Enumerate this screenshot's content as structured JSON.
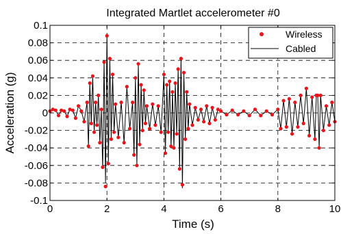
{
  "chart_data": {
    "type": "line",
    "title": "Integrated Martlet accelerometer #0",
    "xlabel": "Time (s)",
    "ylabel": "Acceleration (g)",
    "xlim": [
      0,
      10
    ],
    "ylim": [
      -0.1,
      0.1
    ],
    "x_ticks": [
      0,
      2,
      4,
      6,
      8,
      10
    ],
    "x_tick_labels": [
      "0",
      "2",
      "4",
      "6",
      "8",
      "10"
    ],
    "y_ticks": [
      -0.1,
      -0.08,
      -0.06,
      -0.04,
      -0.02,
      0,
      0.02,
      0.04,
      0.06,
      0.08,
      0.1
    ],
    "y_tick_labels": [
      "-0.1",
      "-0.08",
      "-0.06",
      "-0.04",
      "-0.02",
      "0",
      "0.02",
      "0.04",
      "0.06",
      "0.08",
      "0.1"
    ],
    "grid": true,
    "grid_style": "dashed",
    "legend_position": "top-right",
    "colors": {
      "wireless": "#e8161b",
      "cabled": "#000000"
    },
    "series": [
      {
        "name": "Wireless",
        "style": "markers",
        "color": "#e8161b",
        "x": [
          0.0,
          0.1,
          0.2,
          0.3,
          0.4,
          0.5,
          0.6,
          0.7,
          0.8,
          0.9,
          1.0,
          1.1,
          1.2,
          1.3,
          1.35,
          1.4,
          1.45,
          1.5,
          1.55,
          1.6,
          1.65,
          1.7,
          1.75,
          1.8,
          1.85,
          1.9,
          1.95,
          2.0,
          2.05,
          2.1,
          2.15,
          2.2,
          2.25,
          2.3,
          2.4,
          2.5,
          2.6,
          2.7,
          2.8,
          2.9,
          2.95,
          3.0,
          3.05,
          3.1,
          3.15,
          3.2,
          3.25,
          3.3,
          3.35,
          3.4,
          3.5,
          3.6,
          3.7,
          3.8,
          3.9,
          4.0,
          4.05,
          4.1,
          4.15,
          4.2,
          4.25,
          4.3,
          4.35,
          4.4,
          4.45,
          4.5,
          4.55,
          4.6,
          4.65,
          4.7,
          4.75,
          4.8,
          4.85,
          4.9,
          5.0,
          5.1,
          5.2,
          5.3,
          5.4,
          5.5,
          5.6,
          5.7,
          5.8,
          5.9,
          6.0,
          6.2,
          6.4,
          6.6,
          6.8,
          7.0,
          7.2,
          7.4,
          7.6,
          7.8,
          8.0,
          8.1,
          8.2,
          8.3,
          8.4,
          8.5,
          8.6,
          8.7,
          8.8,
          8.9,
          9.0,
          9.1,
          9.2,
          9.3,
          9.35,
          9.4,
          9.45,
          9.5,
          9.6,
          9.7,
          9.8,
          9.9,
          10.0
        ],
        "y": [
          0.002,
          0.004,
          0.003,
          -0.003,
          0.003,
          0.002,
          -0.004,
          0.004,
          0.003,
          -0.006,
          0.008,
          0.002,
          -0.01,
          0.012,
          -0.038,
          0.034,
          -0.012,
          0.042,
          -0.022,
          0.012,
          -0.014,
          0.02,
          -0.034,
          0.004,
          -0.062,
          0.058,
          -0.084,
          0.088,
          -0.058,
          0.062,
          -0.03,
          0.044,
          -0.022,
          0.01,
          -0.028,
          0.012,
          -0.034,
          0.03,
          -0.018,
          0.012,
          -0.048,
          0.04,
          -0.06,
          0.056,
          -0.036,
          0.032,
          -0.02,
          0.026,
          -0.012,
          0.008,
          -0.018,
          0.01,
          -0.014,
          0.008,
          -0.022,
          0.044,
          -0.046,
          0.032,
          -0.022,
          0.036,
          -0.038,
          0.024,
          -0.04,
          0.034,
          -0.024,
          0.05,
          -0.064,
          0.062,
          -0.082,
          0.046,
          -0.03,
          0.024,
          -0.018,
          0.01,
          -0.014,
          0.006,
          -0.008,
          0.004,
          -0.01,
          0.008,
          -0.012,
          0.006,
          -0.008,
          0.004,
          0.002,
          -0.002,
          0.003,
          -0.002,
          0.002,
          -0.003,
          0.004,
          -0.003,
          0.002,
          -0.002,
          0.004,
          -0.018,
          0.014,
          -0.016,
          0.016,
          -0.024,
          0.012,
          -0.016,
          0.02,
          -0.012,
          0.028,
          -0.026,
          0.018,
          -0.03,
          0.02,
          0.02,
          -0.04,
          0.02,
          -0.02,
          0.008,
          -0.014,
          0.012,
          -0.01
        ]
      },
      {
        "name": "Cabled",
        "style": "line",
        "color": "#000000",
        "x": [
          0.0,
          0.1,
          0.2,
          0.3,
          0.4,
          0.5,
          0.6,
          0.7,
          0.8,
          0.9,
          1.0,
          1.1,
          1.2,
          1.3,
          1.35,
          1.4,
          1.45,
          1.5,
          1.55,
          1.6,
          1.65,
          1.7,
          1.75,
          1.8,
          1.85,
          1.9,
          1.95,
          2.0,
          2.05,
          2.1,
          2.15,
          2.2,
          2.25,
          2.3,
          2.4,
          2.5,
          2.6,
          2.7,
          2.8,
          2.9,
          2.95,
          3.0,
          3.05,
          3.1,
          3.15,
          3.2,
          3.25,
          3.3,
          3.35,
          3.4,
          3.5,
          3.6,
          3.7,
          3.8,
          3.9,
          4.0,
          4.05,
          4.1,
          4.15,
          4.2,
          4.25,
          4.3,
          4.35,
          4.4,
          4.45,
          4.5,
          4.55,
          4.6,
          4.65,
          4.7,
          4.75,
          4.8,
          4.85,
          4.9,
          5.0,
          5.1,
          5.2,
          5.3,
          5.4,
          5.5,
          5.6,
          5.7,
          5.8,
          5.9,
          6.0,
          6.2,
          6.4,
          6.6,
          6.8,
          7.0,
          7.2,
          7.4,
          7.6,
          7.8,
          8.0,
          8.1,
          8.2,
          8.3,
          8.4,
          8.5,
          8.6,
          8.7,
          8.8,
          8.9,
          9.0,
          9.1,
          9.2,
          9.3,
          9.35,
          9.4,
          9.45,
          9.5,
          9.6,
          9.7,
          9.8,
          9.9,
          10.0
        ],
        "y": [
          0.002,
          0.004,
          0.003,
          -0.003,
          0.003,
          0.002,
          -0.004,
          0.004,
          0.003,
          -0.006,
          0.008,
          0.002,
          -0.01,
          0.012,
          -0.038,
          0.034,
          -0.012,
          0.042,
          -0.022,
          0.012,
          -0.014,
          0.02,
          -0.034,
          0.004,
          -0.064,
          0.06,
          -0.08,
          0.09,
          -0.058,
          0.062,
          -0.03,
          0.044,
          -0.022,
          0.01,
          -0.028,
          0.012,
          -0.034,
          0.03,
          -0.018,
          0.012,
          -0.048,
          0.04,
          -0.06,
          0.056,
          -0.036,
          0.032,
          -0.02,
          0.026,
          -0.012,
          0.008,
          -0.018,
          0.01,
          -0.014,
          0.008,
          -0.022,
          0.044,
          -0.046,
          0.032,
          -0.022,
          0.036,
          -0.038,
          0.024,
          -0.04,
          0.034,
          -0.024,
          0.05,
          -0.064,
          0.064,
          -0.086,
          0.046,
          -0.03,
          0.024,
          -0.018,
          0.01,
          -0.014,
          0.006,
          -0.008,
          0.004,
          -0.01,
          0.008,
          -0.012,
          0.006,
          -0.008,
          0.004,
          0.002,
          -0.002,
          0.003,
          -0.002,
          0.002,
          -0.003,
          0.004,
          -0.003,
          0.002,
          -0.002,
          0.004,
          -0.018,
          0.014,
          -0.016,
          0.016,
          -0.024,
          0.012,
          -0.016,
          0.02,
          -0.012,
          0.028,
          -0.026,
          0.018,
          -0.03,
          0.02,
          0.02,
          -0.04,
          0.02,
          -0.02,
          0.008,
          -0.014,
          0.012,
          -0.01
        ]
      }
    ]
  }
}
